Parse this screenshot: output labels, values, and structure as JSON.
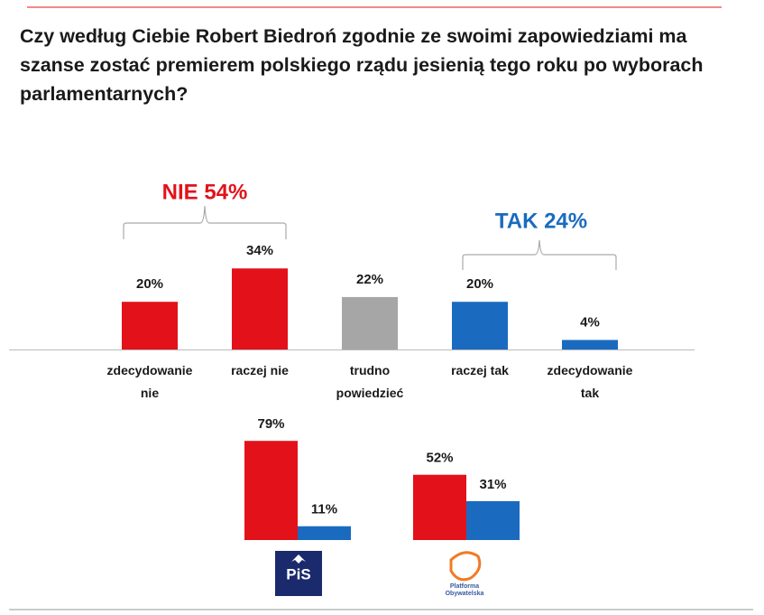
{
  "chart_data": [
    {
      "type": "bar",
      "title": "Czy według Ciebie Robert Biedroń zgodnie ze swoimi zapowiedziami ma szanse zostać premierem polskiego rządu jesienią tego roku po wyborach parlamentarnych?",
      "categories": [
        "zdecydowanie nie",
        "raczej nie",
        "trudno powiedzieć",
        "raczej tak",
        "zdecydowanie tak"
      ],
      "values": [
        20,
        34,
        22,
        20,
        4
      ],
      "value_labels": [
        "20%",
        "34%",
        "22%",
        "20%",
        "4%"
      ],
      "colors": [
        "#e3121a",
        "#e3121a",
        "#a6a6a6",
        "#1a6bbf",
        "#1a6bbf"
      ],
      "ylim": [
        0,
        100
      ],
      "annotations": [
        {
          "text": "NIE 54%",
          "color": "#e3121a"
        },
        {
          "text": "TAK 24%",
          "color": "#1a6bbf"
        }
      ]
    },
    {
      "type": "grouped_bar",
      "categories": [
        "PiS",
        "Platforma Obywatelska"
      ],
      "series": [
        {
          "color": "#e3121a",
          "values": [
            79,
            52
          ],
          "value_labels": [
            "79%",
            "52%"
          ]
        },
        {
          "color": "#1a6bbf",
          "values": [
            11,
            31
          ],
          "value_labels": [
            "11%",
            "31%"
          ]
        }
      ],
      "ylim": [
        0,
        100
      ]
    }
  ]
}
